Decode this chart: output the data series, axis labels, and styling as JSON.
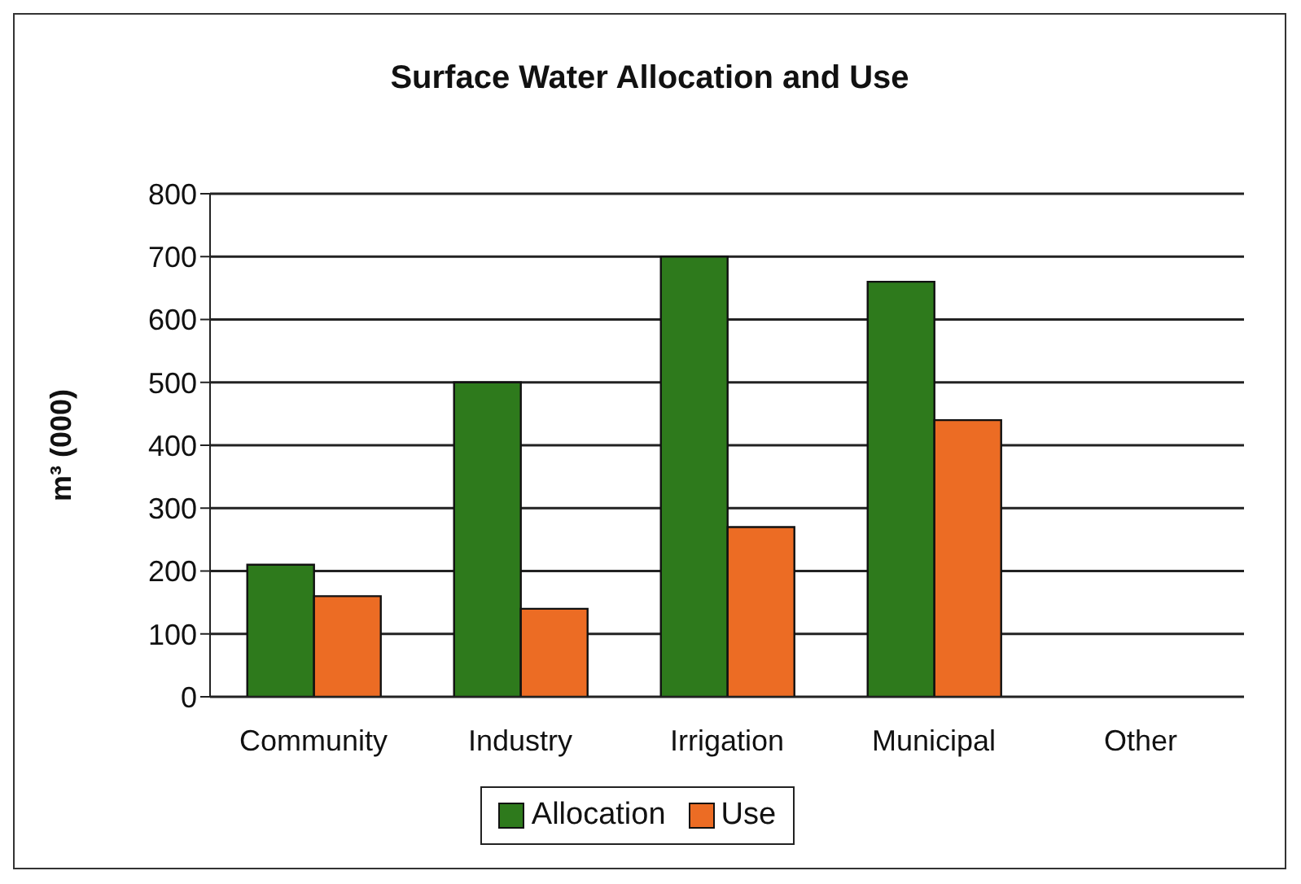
{
  "chart_data": {
    "type": "bar",
    "title": "Surface Water Allocation and Use",
    "ylabel": "m³  (000)",
    "categories": [
      "Community",
      "Industry",
      "Irrigation",
      "Municipal",
      "Other"
    ],
    "series": [
      {
        "name": "Allocation",
        "color": "#2e7a1c",
        "values": [
          210,
          500,
          700,
          660,
          null
        ]
      },
      {
        "name": "Use",
        "color": "#ec6c24",
        "values": [
          160,
          140,
          270,
          440,
          null
        ]
      }
    ],
    "ylim": [
      0,
      800
    ],
    "yticks": [
      0,
      100,
      200,
      300,
      400,
      500,
      600,
      700,
      800
    ],
    "grid": "y",
    "legend": "bottom"
  }
}
